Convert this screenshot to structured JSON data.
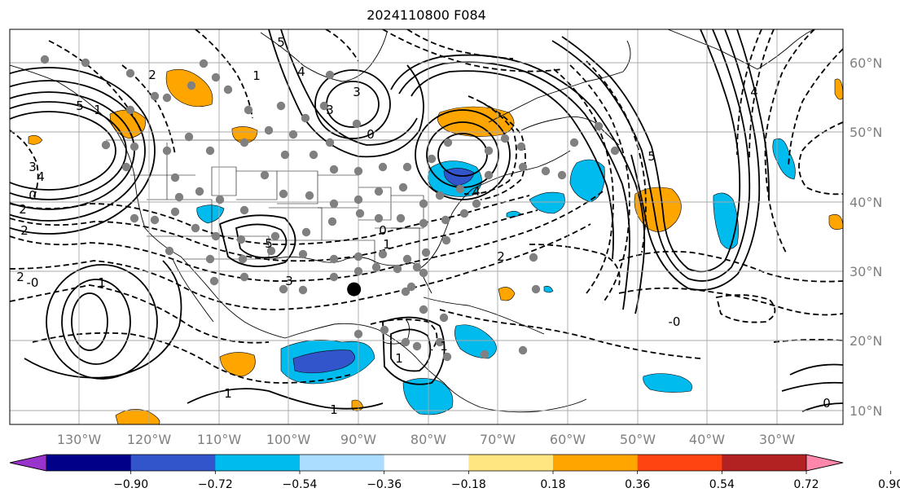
{
  "title": "2024110800 F084",
  "lat_labels": [
    "60°N",
    "50°N",
    "40°N",
    "30°N",
    "20°N",
    "10°N"
  ],
  "lon_labels": [
    "130°W",
    "120°W",
    "110°W",
    "100°W",
    "90°W",
    "80°W",
    "70°W",
    "60°W",
    "50°W",
    "40°W",
    "30°W"
  ],
  "colorbar": {
    "ticks": [
      "−0.90",
      "−0.72",
      "−0.54",
      "−0.36",
      "−0.18",
      "0.18",
      "0.36",
      "0.54",
      "0.72",
      "0.90"
    ],
    "colors": [
      "#9933cc",
      "#000088",
      "#3355cc",
      "#00bbee",
      "#aaddff",
      "#ffffff",
      "#ffe680",
      "#ffa500",
      "#ff4411",
      "#b22222",
      "#ff88aa"
    ]
  },
  "contour_labels": [
    "0",
    "2",
    "3",
    "5",
    "4",
    "1",
    "-0",
    "2",
    "1",
    "3",
    "5",
    "4",
    "3",
    "5",
    "3",
    "4",
    "0",
    "1",
    "2",
    "2",
    "1",
    "0",
    "5",
    "4",
    "-0",
    "1",
    "1",
    "1",
    "2",
    "0",
    "1"
  ],
  "map": {
    "extent": {
      "lon_min": -137,
      "lon_max": -23,
      "lat_min": 8,
      "lat_max": 65
    },
    "marker": {
      "lon": -89.9,
      "lat": 27.5,
      "label": ""
    },
    "station_color": "#808080"
  }
}
